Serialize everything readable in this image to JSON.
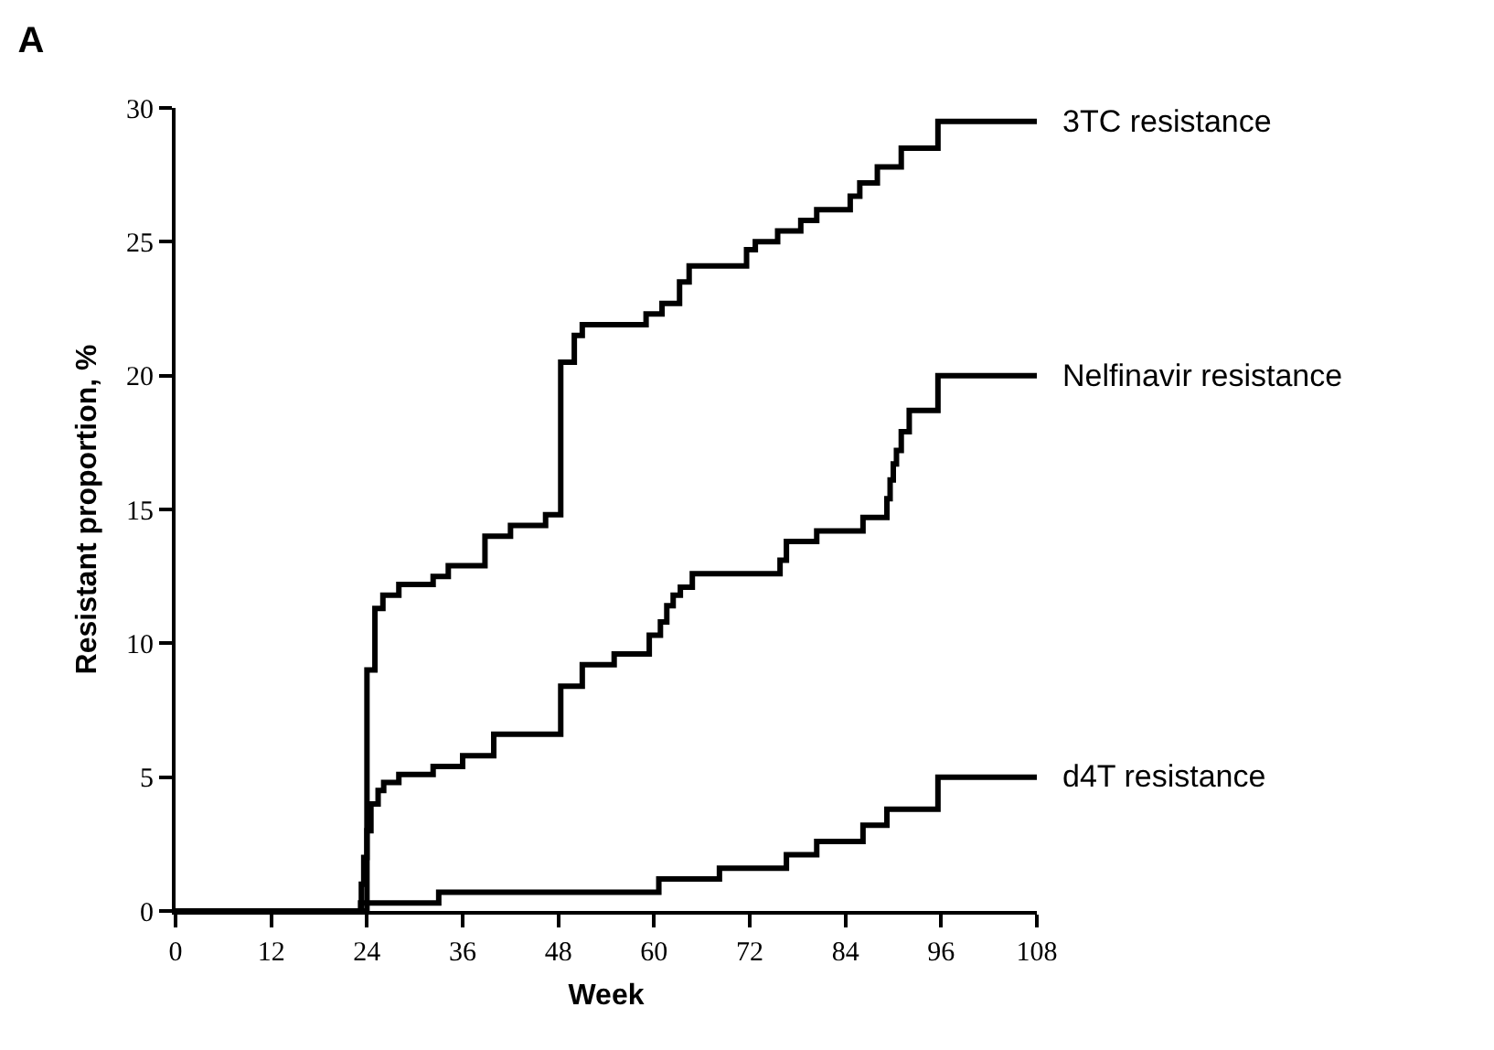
{
  "chart_data": {
    "type": "step",
    "title": "A",
    "xlabel": "Week",
    "ylabel": "Resistant proportion, %",
    "xlim": [
      0,
      108
    ],
    "xticks": [
      0,
      12,
      24,
      36,
      48,
      60,
      72,
      84,
      96,
      108
    ],
    "ylim": [
      0,
      30
    ],
    "yticks": [
      0,
      5,
      10,
      15,
      20,
      25,
      30
    ],
    "grid": false,
    "legend": false,
    "series": [
      {
        "name": "3TC resistance",
        "color": "#000000",
        "x": [
          0,
          23.5,
          24,
          25,
          26,
          28,
          32.3,
          34.2,
          38.8,
          42,
          46.4,
          48.3,
          50,
          51,
          59,
          61,
          63.2,
          64.4,
          71.6,
          72.7,
          75.5,
          78.4,
          80.4,
          84.6,
          85.8,
          88,
          91,
          95.6,
          108
        ],
        "values": [
          0,
          0,
          9,
          11.3,
          11.8,
          12.2,
          12.5,
          12.9,
          14.0,
          14.4,
          14.8,
          20.5,
          21.5,
          21.9,
          22.3,
          22.7,
          23.5,
          24.1,
          24.7,
          25.0,
          25.4,
          25.8,
          26.2,
          26.7,
          27.2,
          27.8,
          28.5,
          29.5,
          29.5
        ]
      },
      {
        "name": "Nelfinavir resistance",
        "color": "#000000",
        "x": [
          0,
          23,
          23.3,
          23.6,
          24,
          24.5,
          25.4,
          26.1,
          28,
          32.3,
          36,
          39.9,
          48.3,
          51,
          55,
          59.4,
          60.8,
          61.6,
          62.4,
          63.3,
          64.8,
          75.8,
          76.6,
          80.4,
          86.2,
          89.2,
          89.6,
          90,
          90.4,
          91,
          92,
          95.6,
          108
        ],
        "values": [
          0,
          0,
          1,
          2,
          3,
          4,
          4.5,
          4.8,
          5.1,
          5.4,
          5.8,
          6.6,
          8.4,
          9.2,
          9.6,
          10.3,
          10.8,
          11.4,
          11.8,
          12.1,
          12.6,
          13.1,
          13.8,
          14.2,
          14.7,
          15.4,
          16.1,
          16.7,
          17.2,
          17.9,
          18.7,
          20,
          20
        ]
      },
      {
        "name": "d4T resistance",
        "color": "#000000",
        "x": [
          0,
          22.5,
          23.2,
          33,
          60.6,
          68.2,
          76.6,
          80.4,
          86.2,
          89.2,
          95.6,
          108
        ],
        "values": [
          0,
          0,
          0.3,
          0.7,
          1.2,
          1.6,
          2.1,
          2.6,
          3.2,
          3.8,
          5.0,
          5.0
        ]
      }
    ]
  }
}
